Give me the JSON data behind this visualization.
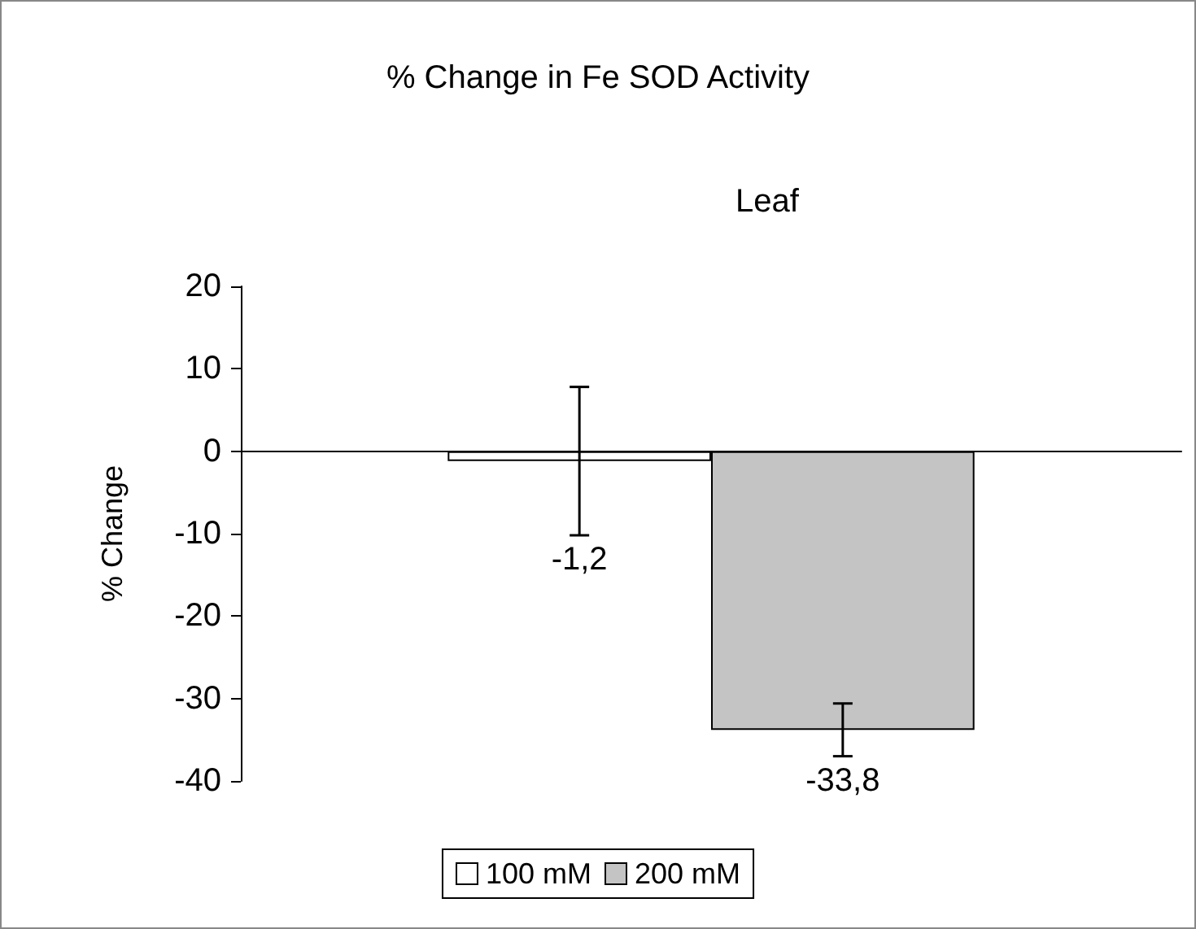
{
  "chart_data": {
    "type": "bar",
    "title": "% Change in Fe SOD Activity",
    "subtitle": "Leaf",
    "ylabel": "% Change",
    "categories": [
      null
    ],
    "series": [
      {
        "name": "100 mM",
        "color": "#ffffff",
        "values": [
          -1.2
        ],
        "errors": [
          9
        ],
        "value_labels": [
          "-1,2"
        ]
      },
      {
        "name": "200 mM",
        "color": "#c4c4c4",
        "values": [
          -33.8
        ],
        "errors": [
          3.2
        ],
        "value_labels": [
          "-33,8"
        ]
      }
    ],
    "ylim": [
      -40,
      20
    ],
    "yticks": [
      -40,
      -30,
      -20,
      -10,
      0,
      10,
      20
    ],
    "legend": "bottom"
  }
}
